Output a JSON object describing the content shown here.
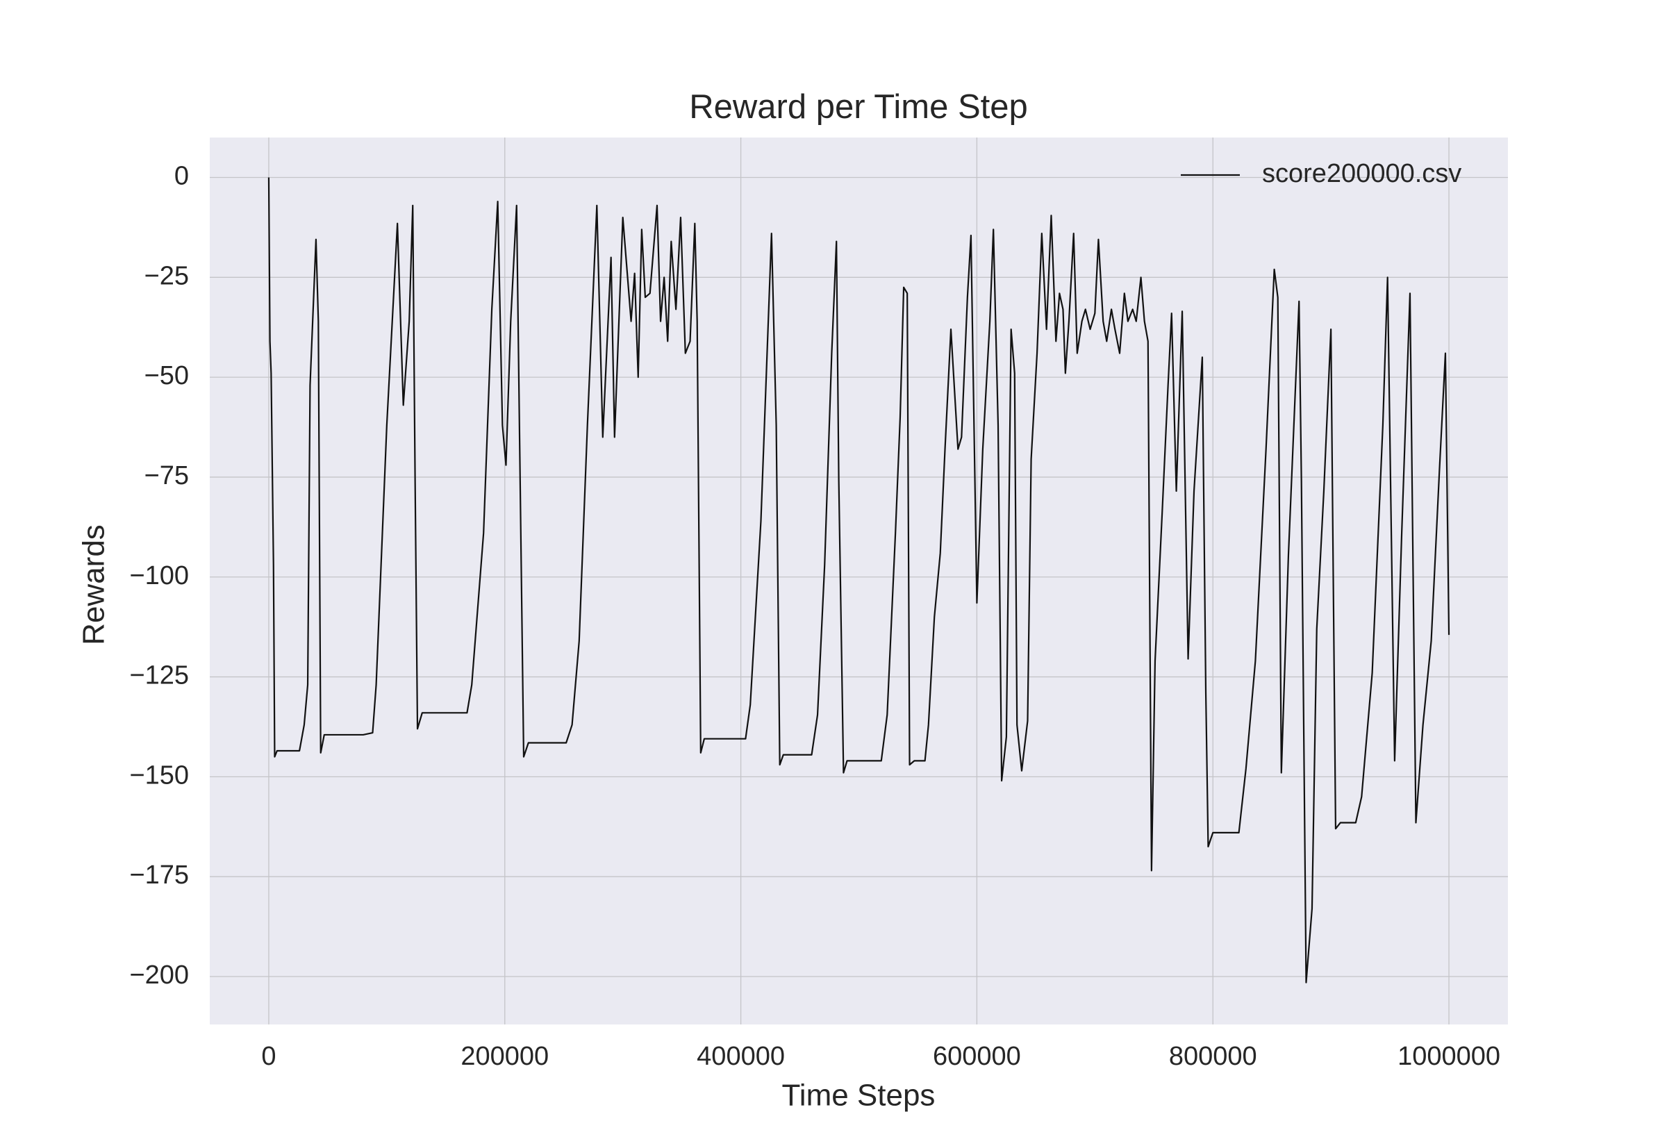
{
  "chart_data": {
    "type": "line",
    "title": "Reward per Time Step",
    "x_label": "Time Steps",
    "y_label": "Rewards",
    "x": [
      0,
      1000,
      2000,
      4000,
      5000,
      7000,
      26000,
      30000,
      33000,
      35000,
      40000,
      42000,
      44000,
      47000,
      80000,
      88000,
      91000,
      100000,
      109000,
      114000,
      119000,
      122000,
      124000,
      126000,
      130000,
      168000,
      172000,
      182000,
      189000,
      194000,
      198000,
      201000,
      205000,
      210000,
      213000,
      216000,
      220000,
      252000,
      257000,
      263000,
      270000,
      278000,
      283000,
      290000,
      293000,
      300000,
      307000,
      310000,
      313000,
      316000,
      319000,
      323000,
      329000,
      332000,
      335000,
      338000,
      341000,
      345000,
      349000,
      353000,
      357000,
      361000,
      363000,
      366000,
      369000,
      404000,
      408000,
      417000,
      426000,
      430000,
      433000,
      436000,
      460000,
      465000,
      471000,
      477000,
      481000,
      483000,
      487000,
      490000,
      519000,
      524000,
      531000,
      535000,
      538000,
      541000,
      543000,
      547000,
      556000,
      559000,
      564000,
      569000,
      573000,
      578000,
      584000,
      587000,
      592000,
      595000,
      600000,
      605000,
      611000,
      614000,
      618000,
      621000,
      625000,
      629000,
      632000,
      634000,
      638000,
      643000,
      646000,
      651000,
      655000,
      659000,
      663000,
      667000,
      670000,
      673000,
      675000,
      678000,
      682000,
      685000,
      689000,
      692000,
      696000,
      700000,
      703000,
      707000,
      710000,
      714000,
      717000,
      721000,
      725000,
      728000,
      732000,
      735000,
      739000,
      742000,
      745000,
      748000,
      751000,
      757000,
      762000,
      765000,
      769000,
      774000,
      779000,
      784000,
      791000,
      794000,
      796000,
      800000,
      822000,
      828000,
      836000,
      845000,
      852000,
      855000,
      858000,
      864000,
      873000,
      875000,
      879000,
      884000,
      888000,
      894000,
      900000,
      904000,
      908000,
      921000,
      926000,
      935000,
      944000,
      948000,
      954000,
      960000,
      967000,
      972000,
      978000,
      985000,
      992000,
      997000,
      1000000
    ],
    "series": [
      {
        "name": "score200000.csv",
        "color": "#111111",
        "values": [
          0,
          -41,
          -49,
          -97,
          -145,
          -143.5,
          -143.5,
          -137,
          -127,
          -52,
          -15.5,
          -36,
          -144,
          -139.5,
          -139.5,
          -139,
          -127,
          -62,
          -11.5,
          -57,
          -36,
          -7,
          -76,
          -138,
          -134,
          -134,
          -127,
          -89,
          -33,
          -6,
          -62,
          -72,
          -36,
          -7,
          -76,
          -145,
          -141.5,
          -141.5,
          -137,
          -116,
          -62,
          -7,
          -65,
          -20,
          -65,
          -10,
          -36,
          -24,
          -50,
          -13,
          -30,
          -29,
          -7,
          -36,
          -25,
          -41,
          -16,
          -33,
          -10,
          -44,
          -41,
          -11.5,
          -36,
          -144,
          -140.5,
          -140.5,
          -132,
          -86,
          -14,
          -62,
          -147,
          -144.5,
          -144.5,
          -134.5,
          -97,
          -44,
          -16,
          -76,
          -149,
          -146,
          -146,
          -134.5,
          -89,
          -60,
          -27.5,
          -29,
          -147,
          -146,
          -146,
          -137,
          -110,
          -94,
          -68,
          -38,
          -68,
          -65,
          -30,
          -14.5,
          -106.5,
          -68,
          -36,
          -13,
          -62,
          -151,
          -140,
          -38,
          -49,
          -137,
          -148.5,
          -136,
          -70.5,
          -44,
          -14,
          -38,
          -9.5,
          -41,
          -29,
          -33,
          -49,
          -36,
          -14,
          -44,
          -36,
          -33,
          -38,
          -34,
          -15.5,
          -36,
          -41,
          -33,
          -38,
          -44,
          -29,
          -36,
          -33,
          -36,
          -25,
          -36,
          -41,
          -173.5,
          -121,
          -84,
          -52,
          -34,
          -78.5,
          -33.5,
          -120.5,
          -78.5,
          -45,
          -129,
          -167.5,
          -164,
          -164,
          -148,
          -121,
          -68,
          -23,
          -30,
          -149,
          -94.5,
          -31,
          -76,
          -201.5,
          -183,
          -113,
          -78.5,
          -38,
          -163,
          -161.5,
          -161.5,
          -155,
          -124,
          -62,
          -25,
          -146,
          -89,
          -29,
          -161.5,
          -137,
          -116,
          -73,
          -44,
          -114.5
        ]
      }
    ],
    "xlim": [
      -50000,
      1050000
    ],
    "ylim": [
      -212,
      10
    ],
    "xticks": [
      0,
      200000,
      400000,
      600000,
      800000,
      1000000
    ],
    "yticks": [
      0,
      {
        "value": -25,
        "label": "−25"
      },
      {
        "value": -50,
        "label": "−50"
      },
      {
        "value": -75,
        "label": "−75"
      },
      {
        "value": -100,
        "label": "−100"
      },
      {
        "value": -125,
        "label": "−125"
      },
      {
        "value": -150,
        "label": "−150"
      },
      {
        "value": -175,
        "label": "−175"
      },
      {
        "value": -200,
        "label": "−200"
      }
    ],
    "grid": true,
    "legend": "upper right"
  }
}
